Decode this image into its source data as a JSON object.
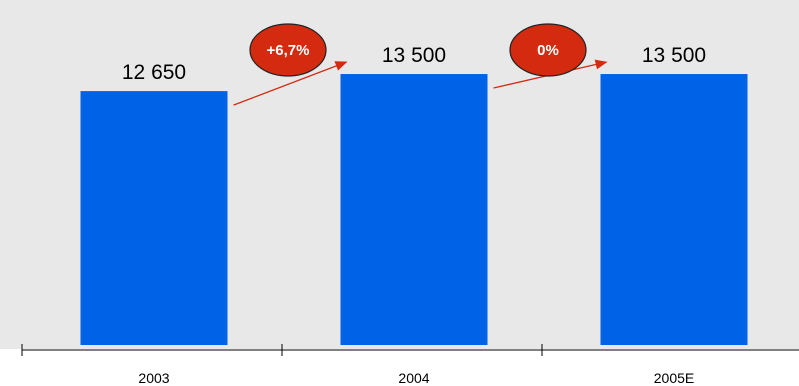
{
  "chart_data": {
    "type": "bar",
    "categories": [
      "2003",
      "2004",
      "2005E"
    ],
    "values": [
      12650,
      13500,
      13500
    ],
    "value_labels": [
      "12 650",
      "13 500",
      "13 500"
    ],
    "annotations": [
      {
        "text": "+6,7%",
        "from": "2003",
        "to": "2004"
      },
      {
        "text": "0%",
        "from": "2004",
        "to": "2005E"
      }
    ],
    "ylim": [
      0,
      14100
    ],
    "grid": false,
    "colors": {
      "bar": "#0062e6",
      "plot_background": "#e8e8e8",
      "badge": "#d42a10",
      "arrow": "#d42a10"
    }
  }
}
